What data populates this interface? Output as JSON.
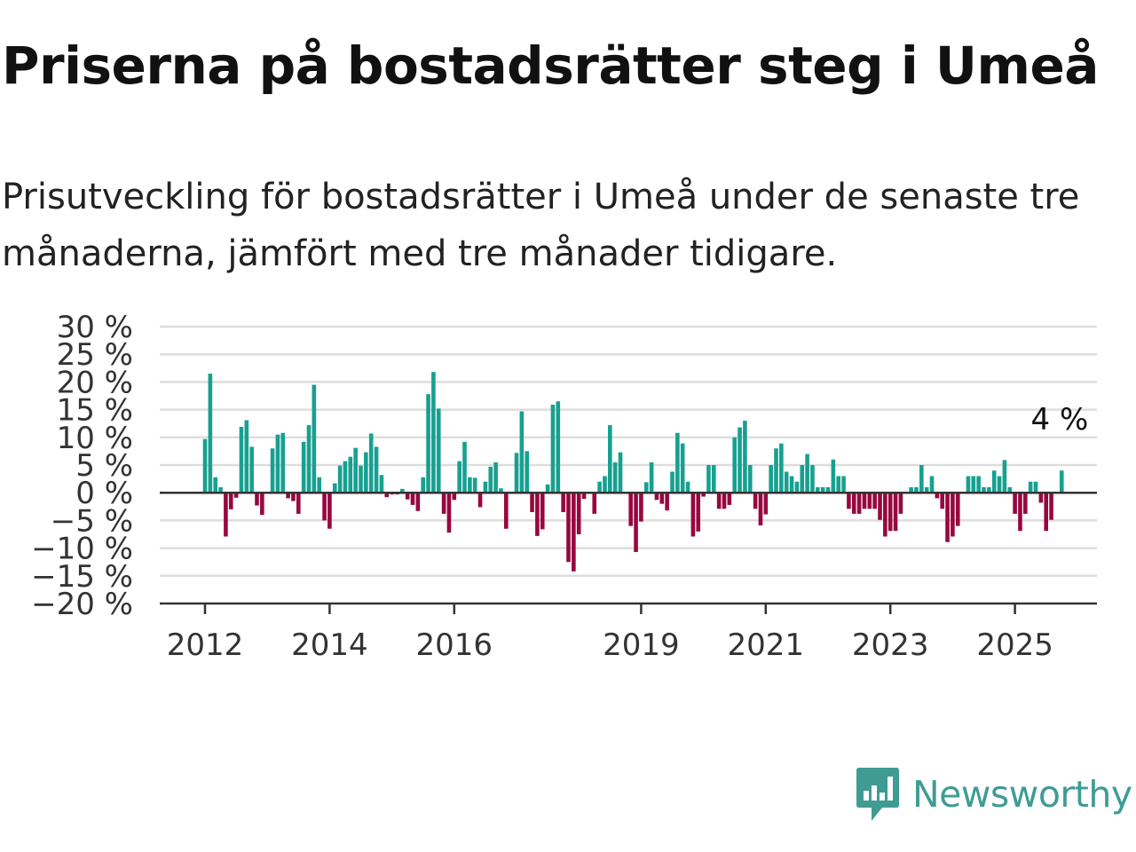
{
  "header": {
    "title": "Priserna på bostadsrätter steg i Umeå",
    "subtitle": "Prisutveckling för bostadsrätter i Umeå under de senaste tre månaderna, jämfört med tre månader tidigare."
  },
  "brand": {
    "name": "Newsworthy",
    "color": "#3e9c95",
    "icon": "newsworthy-logo-icon"
  },
  "colors": {
    "positive": "#17a090",
    "negative": "#98073f",
    "grid": "#dddddd",
    "zero": "#333333"
  },
  "chart_data": {
    "type": "bar",
    "title": "Priserna på bostadsrätter steg i Umeå",
    "ylim": [
      -20,
      30
    ],
    "yticks": [
      30,
      25,
      20,
      15,
      10,
      5,
      0,
      -5,
      -10,
      -15,
      -20
    ],
    "ytick_labels": [
      "30 %",
      "25 %",
      "20 %",
      "15 %",
      "10 %",
      "5 %",
      "0 %",
      "−5 %",
      "−10 %",
      "−15 %",
      "−20 %"
    ],
    "xticks": [
      {
        "label": "2012",
        "month": 0
      },
      {
        "label": "2014",
        "month": 24
      },
      {
        "label": "2016",
        "month": 48
      },
      {
        "label": "2019",
        "month": 84
      },
      {
        "label": "2021",
        "month": 108
      },
      {
        "label": "2023",
        "month": 132
      },
      {
        "label": "2025",
        "month": 156
      }
    ],
    "start": "2012-01",
    "grid": true,
    "annotation": {
      "label": "4 %",
      "value": 4
    },
    "values": [
      9.7,
      21.5,
      2.8,
      1.0,
      -7.9,
      -3.0,
      -0.9,
      11.9,
      13.1,
      8.3,
      -2.3,
      -4.0,
      0,
      8.0,
      10.5,
      10.8,
      -1.0,
      -1.5,
      -3.8,
      9.2,
      12.2,
      19.5,
      2.8,
      -5.0,
      -6.5,
      1.7,
      4.9,
      5.7,
      6.5,
      8.1,
      4.9,
      7.3,
      10.7,
      8.3,
      3.2,
      -0.8,
      -0.3,
      -0.3,
      0.7,
      -1.2,
      -2.2,
      -3.3,
      2.8,
      17.8,
      21.8,
      15.2,
      -3.8,
      -7.2,
      -1.3,
      5.7,
      9.2,
      2.8,
      2.7,
      -2.6,
      2.0,
      4.7,
      5.5,
      0.8,
      -6.5,
      0,
      7.2,
      14.7,
      7.5,
      -3.5,
      -7.8,
      -6.6,
      1.5,
      15.9,
      16.5,
      -3.5,
      -12.5,
      -14.2,
      -7.5,
      -1.1,
      0,
      -3.8,
      2.0,
      3.0,
      12.2,
      5.5,
      7.3,
      0,
      -6.0,
      -10.7,
      -5.2,
      1.9,
      5.5,
      -1.3,
      -2.0,
      -3.2,
      3.8,
      10.8,
      8.9,
      2.0,
      -7.9,
      -7.0,
      -0.7,
      5.0,
      5.0,
      -2.9,
      -2.9,
      -2.2,
      10.0,
      11.8,
      13.0,
      5.0,
      -2.9,
      -5.9,
      -3.9,
      5.0,
      8.0,
      8.9,
      3.8,
      3.0,
      2.0,
      5.0,
      7.0,
      5.0,
      1.0,
      1.0,
      1.0,
      6.0,
      3.0,
      3.0,
      -2.9,
      -3.8,
      -3.8,
      -2.9,
      -2.9,
      -2.9,
      -4.9,
      -7.9,
      -6.9,
      -6.9,
      -3.8,
      0,
      1.0,
      1.0,
      5.0,
      1.0,
      3.0,
      -1.0,
      -2.9,
      -8.9,
      -7.9,
      -6.0,
      0,
      3.0,
      3.0,
      3.0,
      1.0,
      1.0,
      4.0,
      3.0,
      5.9,
      1.0,
      -3.8,
      -6.9,
      -3.8,
      2.0,
      2.0,
      -1.8,
      -6.9,
      -4.9,
      0,
      4.0
    ]
  }
}
